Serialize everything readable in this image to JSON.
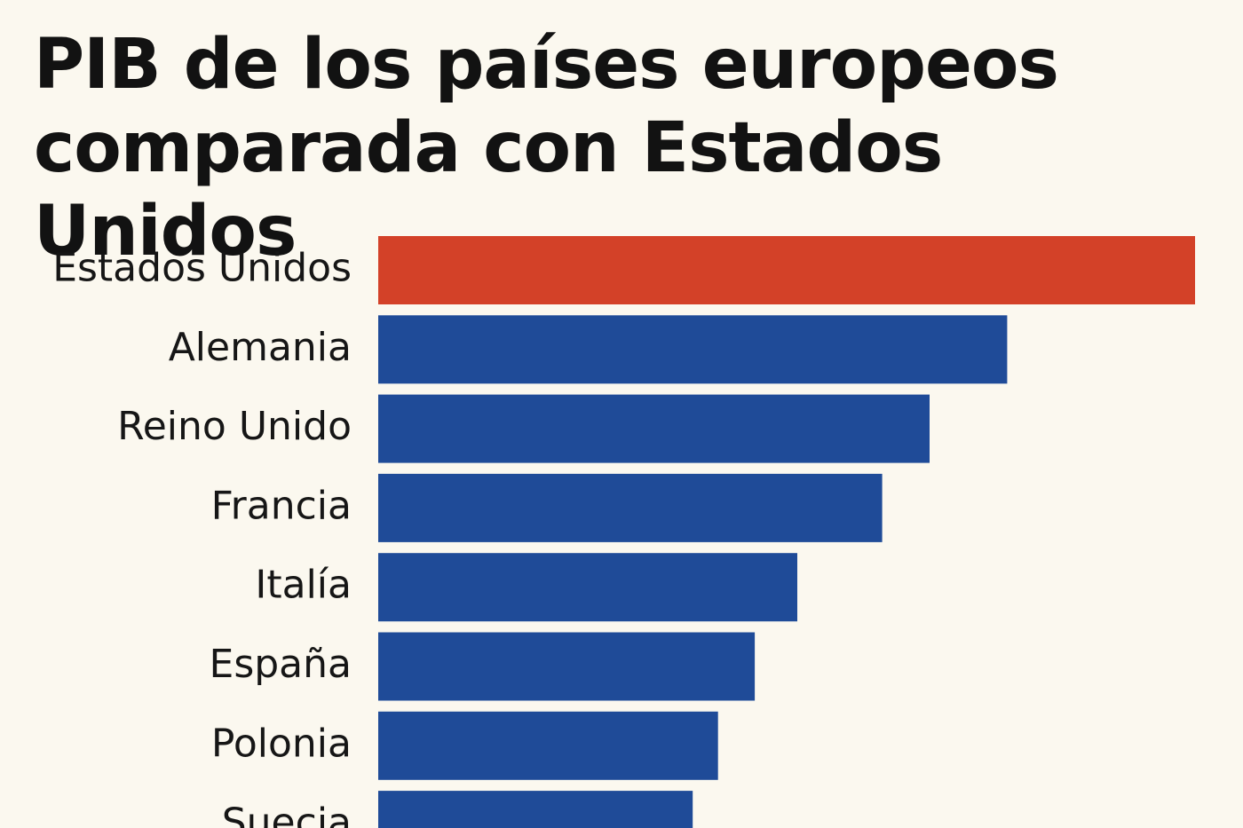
{
  "chart_data": {
    "type": "bar",
    "orientation": "horizontal",
    "title": "PIB de los países europeos comparada con Estados Unidos",
    "categories": [
      "Estados Unidos",
      "Alemania",
      "Reino Unido",
      "Francia",
      "Italía",
      "España",
      "Polonia",
      "Suecia"
    ],
    "values": [
      100,
      77,
      67.5,
      61.7,
      51.3,
      46.1,
      41.6,
      38.5
    ],
    "colors": [
      "#d34128",
      "#1f4b98",
      "#1f4b98",
      "#1f4b98",
      "#1f4b98",
      "#1f4b98",
      "#1f4b98",
      "#1f4b98"
    ],
    "xlim": [
      0,
      100
    ],
    "xlabel": "",
    "ylabel": "",
    "grid": false,
    "legend": "none"
  },
  "colors": {
    "background": "#fbf8ef",
    "highlight": "#d34128",
    "bars": "#1f4b98",
    "text": "#121212"
  }
}
